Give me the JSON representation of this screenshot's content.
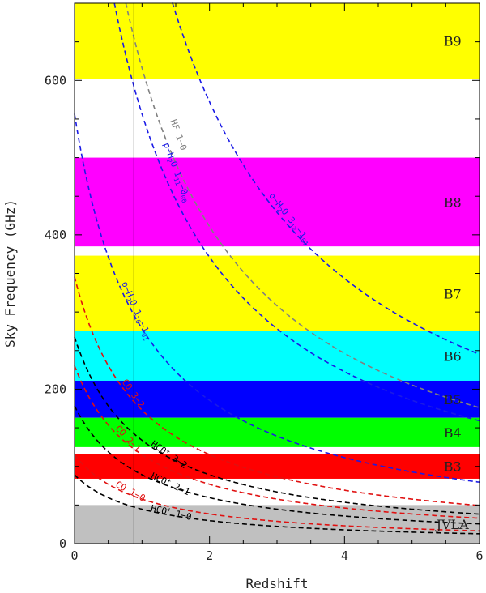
{
  "chart_data": {
    "type": "line",
    "xlabel": "Redshift",
    "ylabel": "Sky Frequency (GHz)",
    "xlim": [
      0,
      6
    ],
    "ylim": [
      0,
      700
    ],
    "xticks": [
      0,
      2,
      4,
      6
    ],
    "yticks": [
      0,
      200,
      400,
      600
    ],
    "xtick_labels": [
      "0",
      "2",
      "4",
      "6"
    ],
    "ytick_labels": [
      "0",
      "200",
      "400",
      "600"
    ],
    "reference_line_redshift": 0.88,
    "bands": [
      {
        "label": "B9",
        "low": 602,
        "high": 700,
        "color": "#ffff00"
      },
      {
        "label": "B8",
        "low": 385,
        "high": 500,
        "color": "#ff00ff"
      },
      {
        "label": "B7",
        "low": 275,
        "high": 373,
        "color": "#ffff00"
      },
      {
        "label": "B6",
        "low": 211,
        "high": 275,
        "color": "#00ffff"
      },
      {
        "label": "B5",
        "low": 163,
        "high": 211,
        "color": "#0000ff"
      },
      {
        "label": "B4",
        "low": 125,
        "high": 163,
        "color": "#00ff00"
      },
      {
        "label": "B3",
        "low": 84,
        "high": 116,
        "color": "#ff0000"
      },
      {
        "label": "JVLA",
        "low": 0,
        "high": 50,
        "color": "#c0c0c0"
      }
    ],
    "series": [
      {
        "label": [
          "o−H",
          "2",
          "O 3",
          "12",
          "−1",
          "01"
        ],
        "rest_ghz": 1716.8,
        "color": "#1a1ae6",
        "labelZ": 2.9,
        "dx": -2,
        "dy": -10
      },
      {
        "label": [
          "p−H",
          "2",
          "O 1",
          "11",
          "−0",
          "00"
        ],
        "rest_ghz": 1113.3,
        "color": "#1a1ae6",
        "labelZ": 1.15,
        "dx": 14,
        "dy": 0
      },
      {
        "label": [
          "HF 1−0"
        ],
        "rest_ghz": 1232.5,
        "color": "#808080",
        "labelZ": 1.25,
        "dx": 14,
        "dy": 0
      },
      {
        "label": [
          "o−H",
          "2",
          "O 1",
          "10",
          "−1",
          "01"
        ],
        "rest_ghz": 556.9,
        "color": "#1a1ae6",
        "labelZ": 0.65,
        "dx": 4,
        "dy": 0
      },
      {
        "label": [
          "CO 3−2"
        ],
        "rest_ghz": 345.8,
        "color": "#e01010",
        "labelZ": 0.65,
        "dx": 4,
        "dy": 0
      },
      {
        "label": [
          "CO 2−1"
        ],
        "rest_ghz": 230.5,
        "color": "#e01010",
        "labelZ": 0.55,
        "dx": 4,
        "dy": 0
      },
      {
        "label": [
          "CO 1−0"
        ],
        "rest_ghz": 115.3,
        "color": "#e01010",
        "labelZ": 0.55,
        "dx": 4,
        "dy": 0
      },
      {
        "label": [
          "HCO",
          "+",
          " 3−2"
        ],
        "rest_ghz": 267.6,
        "color": "#000000",
        "labelZ": 1.1,
        "dx": 2,
        "dy": 0
      },
      {
        "label": [
          "HCO",
          "+",
          " 2−1"
        ],
        "rest_ghz": 178.4,
        "color": "#000000",
        "labelZ": 1.1,
        "dx": 2,
        "dy": 0
      },
      {
        "label": [
          "HCO",
          "+",
          " 1−0"
        ],
        "rest_ghz": 89.2,
        "color": "#000000",
        "labelZ": 1.1,
        "dx": 2,
        "dy": 0
      }
    ]
  }
}
